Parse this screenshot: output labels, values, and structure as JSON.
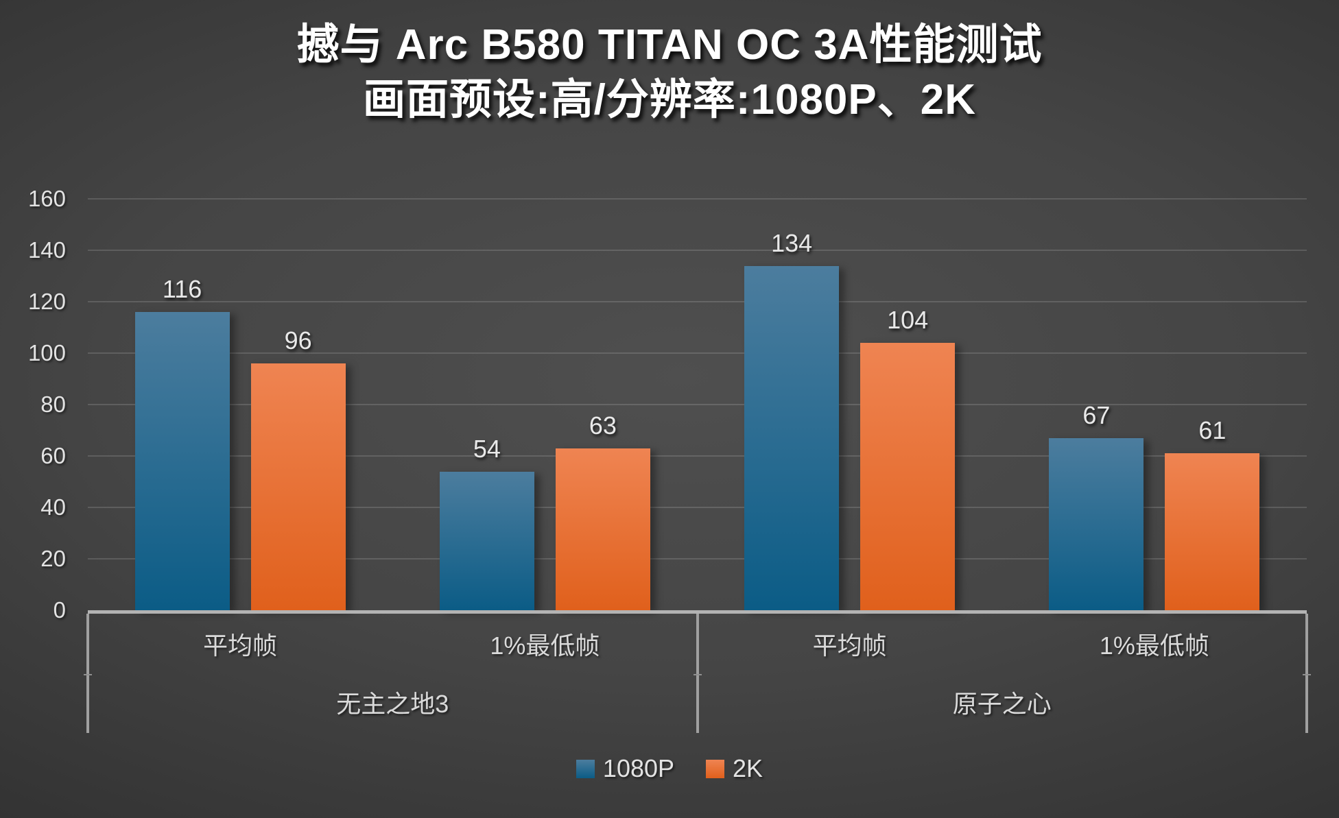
{
  "chart_title": {
    "line1": "撼与 Arc B580 TITAN OC 3A性能测试",
    "line2": "画面预设:高/分辨率:1080P、2K"
  },
  "colors": {
    "background_center": "#4f4f4f",
    "background_edge": "#242424",
    "series_1080p": "#1b6390",
    "series_1080p_gradient_top": "#4c7d9e",
    "series_1080p_gradient_bottom": "#0b5c86",
    "series_2k": "#ed6f26",
    "series_2k_gradient_top": "#ef8452",
    "series_2k_gradient_bottom": "#e0601c",
    "axis_line": "#b3b3b3",
    "gridline": "rgba(255,255,255,0.14)",
    "text": "#e8e8e8"
  },
  "chart_data": {
    "type": "bar",
    "title": "撼与 Arc B580 TITAN OC 3A性能测试",
    "subtitle": "画面预设:高/分辨率:1080P、2K",
    "groups": [
      {
        "label": "无主之地3",
        "categories": [
          "平均帧",
          "1%最低帧"
        ]
      },
      {
        "label": "原子之心",
        "categories": [
          "平均帧",
          "1%最低帧"
        ]
      }
    ],
    "categories_flat": [
      "平均帧",
      "1%最低帧",
      "平均帧",
      "1%最低帧"
    ],
    "series": [
      {
        "name": "1080P",
        "color": "#1b6390",
        "values": [
          116,
          54,
          134,
          67
        ]
      },
      {
        "name": "2K",
        "color": "#ed6f26",
        "values": [
          96,
          63,
          104,
          61
        ]
      }
    ],
    "ylim": [
      0,
      160
    ],
    "ytick_step": 20,
    "yticks": [
      0,
      20,
      40,
      60,
      80,
      100,
      120,
      140,
      160
    ],
    "grid": true,
    "data_labels": true,
    "legend_position": "bottom"
  }
}
